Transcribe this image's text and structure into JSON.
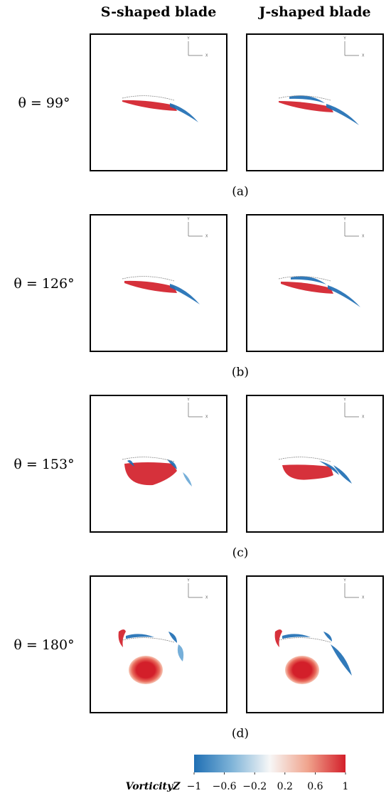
{
  "columns": [
    "S-shaped blade",
    "J-shaped blade"
  ],
  "axis_labels": {
    "y": "Y",
    "x": "X"
  },
  "rows": [
    {
      "angle": "θ = 99°",
      "panel": "(a)"
    },
    {
      "angle": "θ = 126°",
      "panel": "(b)"
    },
    {
      "angle": "θ = 153°",
      "panel": "(c)"
    },
    {
      "angle": "θ = 180°",
      "panel": "(d)"
    }
  ],
  "colorbar": {
    "label": "VorticityZ",
    "lim": [
      -1,
      1
    ],
    "ticks": [
      {
        "value": -1,
        "label": "−1"
      },
      {
        "value": -0.6,
        "label": "−0.6"
      },
      {
        "value": -0.2,
        "label": "−0.2"
      },
      0.2,
      0.6,
      1
    ]
  }
}
